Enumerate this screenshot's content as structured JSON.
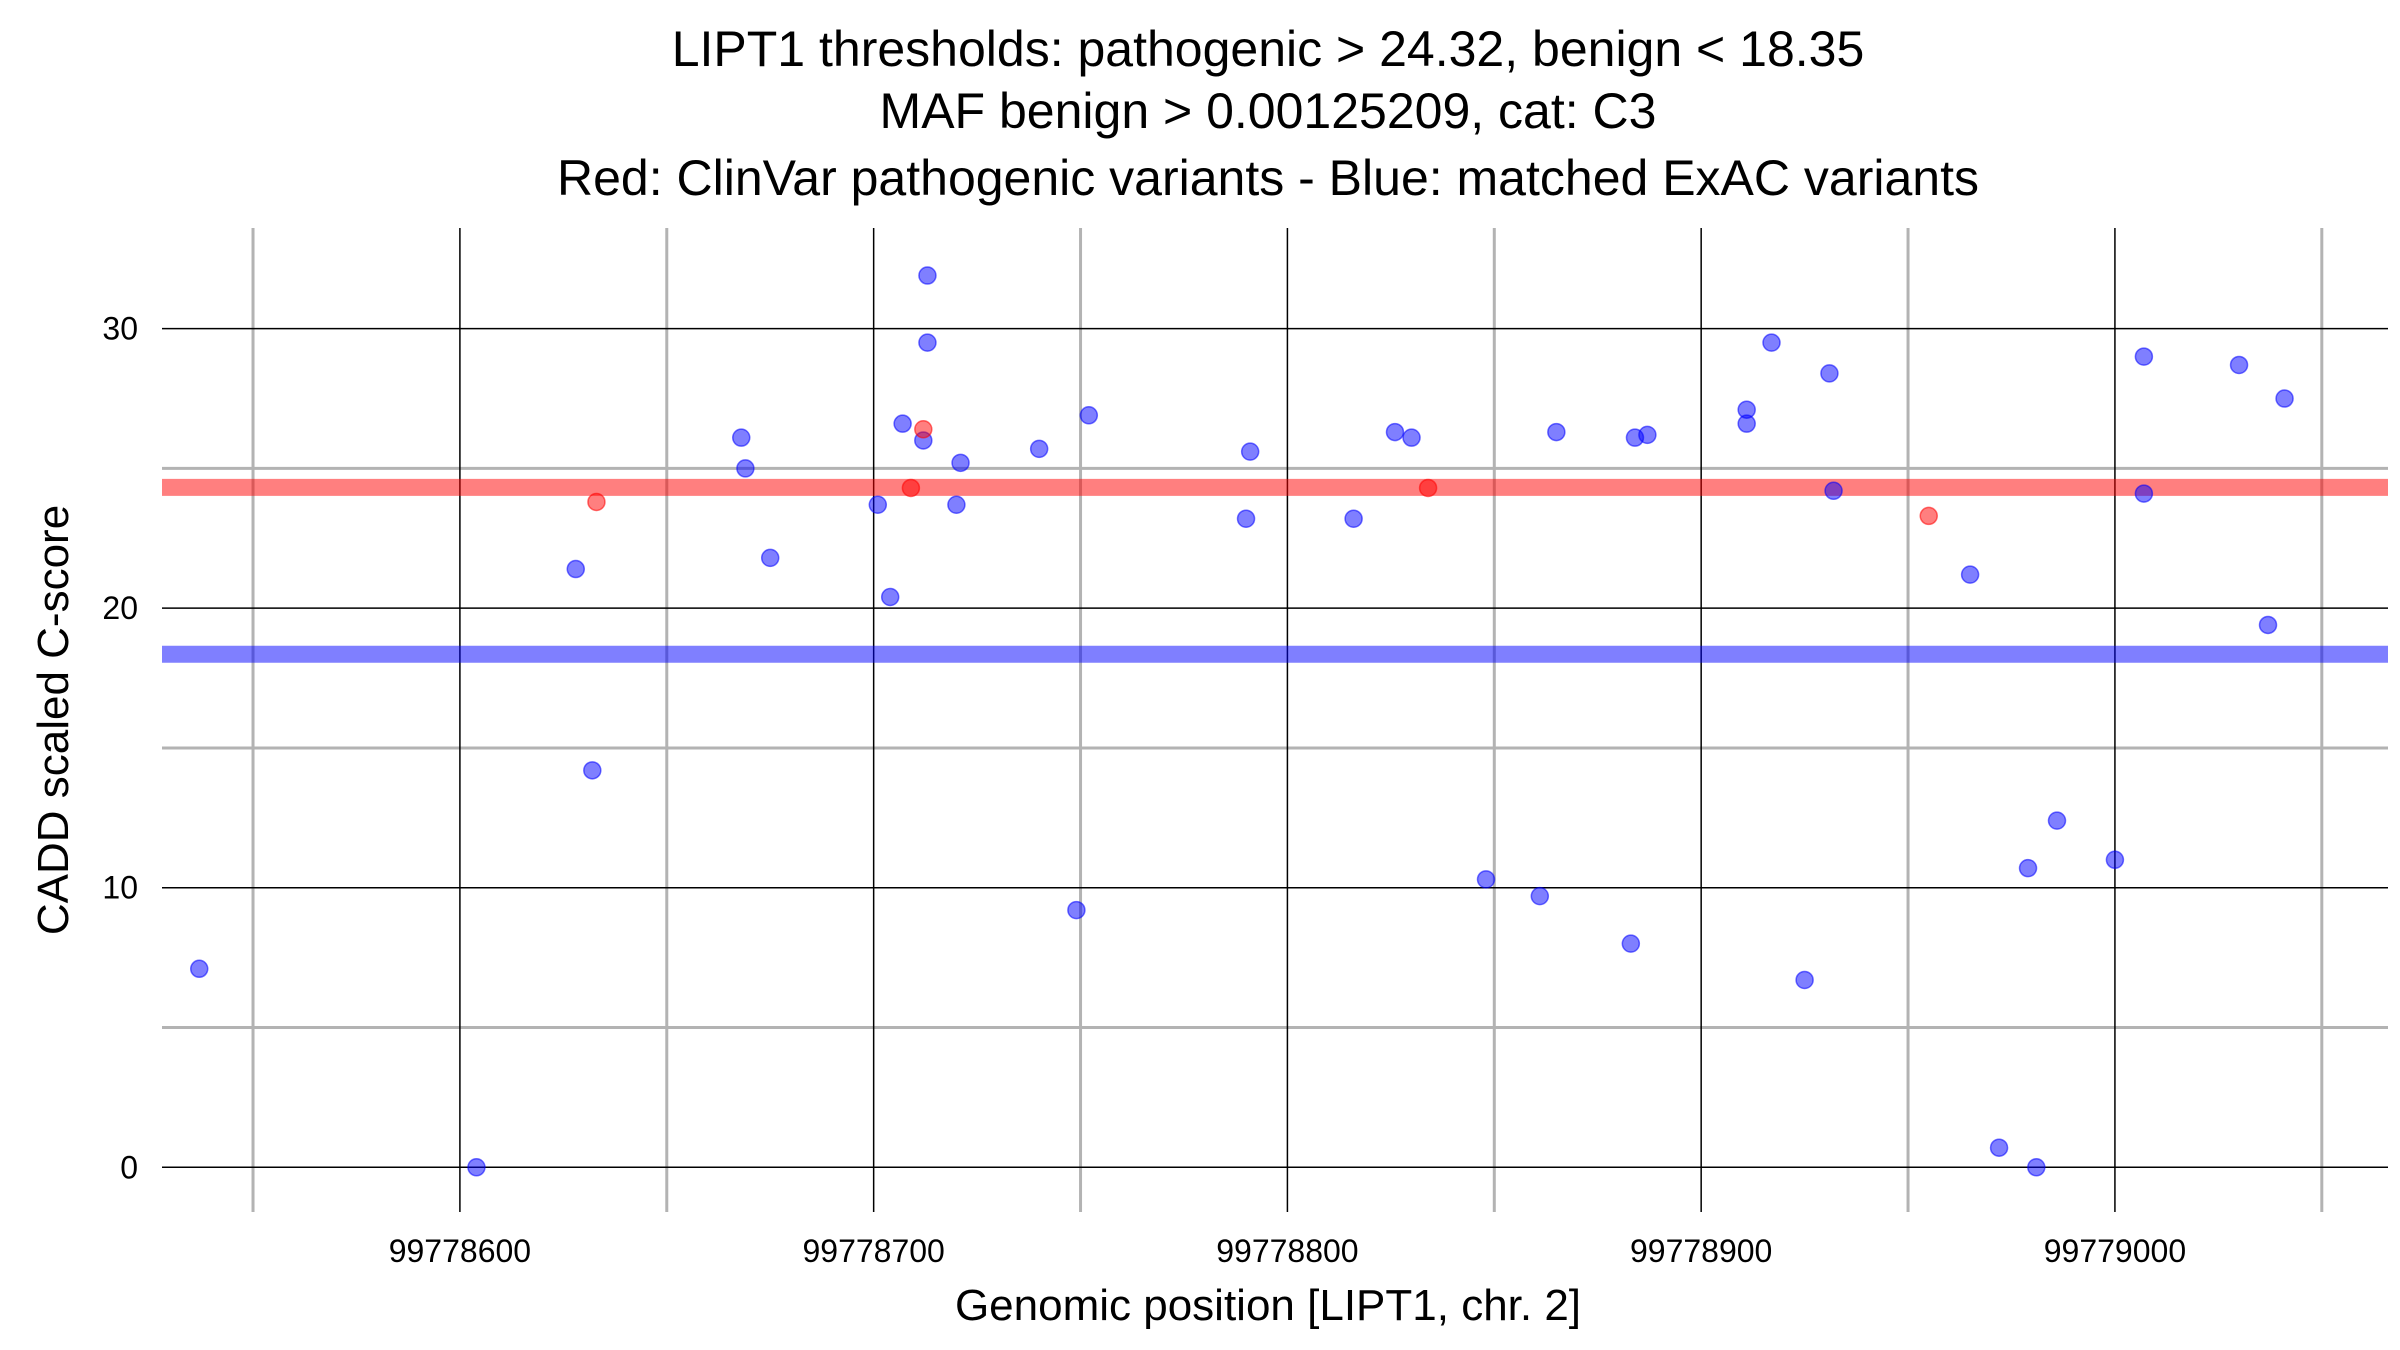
{
  "chart_data": {
    "type": "scatter",
    "title_lines": [
      "LIPT1 thresholds: pathogenic > 24.32, benign < 18.35",
      "MAF benign > 0.00125209, cat: C3",
      "Red: ClinVar pathogenic variants - Blue: matched ExAC variants"
    ],
    "xlabel": "Genomic position [LIPT1, chr. 2]",
    "ylabel": "CADD scaled C-score",
    "xlim": [
      99778528,
      99779066
    ],
    "ylim": [
      -1.6,
      33.6
    ],
    "x_major_ticks": [
      99778600,
      99778700,
      99778800,
      99778900,
      99779000
    ],
    "x_minor_ticks": [
      99778550,
      99778650,
      99778750,
      99778850,
      99778950,
      99779050
    ],
    "y_major_ticks": [
      0,
      10,
      20,
      30
    ],
    "y_minor_ticks": [
      5,
      15,
      25
    ],
    "thresholds": {
      "pathogenic": 24.32,
      "benign": 18.35,
      "pathogenic_color": "#ff0000",
      "benign_color": "#0000ff"
    },
    "grid": true,
    "series": [
      {
        "color": "#0000ff",
        "points": [
          [
            99778537,
            7.1
          ],
          [
            99778604,
            0.0
          ],
          [
            99778628,
            21.4
          ],
          [
            99778632,
            14.2
          ],
          [
            99778668,
            26.1
          ],
          [
            99778669,
            25.0
          ],
          [
            99778675,
            21.8
          ],
          [
            99778701,
            23.7
          ],
          [
            99778704,
            20.4
          ],
          [
            99778707,
            26.6
          ],
          [
            99778712,
            26.0
          ],
          [
            99778713,
            31.9
          ],
          [
            99778713,
            29.5
          ],
          [
            99778720,
            23.7
          ],
          [
            99778721,
            25.2
          ],
          [
            99778740,
            25.7
          ],
          [
            99778749,
            9.2
          ],
          [
            99778752,
            26.9
          ],
          [
            99778790,
            23.2
          ],
          [
            99778791,
            25.6
          ],
          [
            99778816,
            23.2
          ],
          [
            99778826,
            26.3
          ],
          [
            99778830,
            26.1
          ],
          [
            99778848,
            10.3
          ],
          [
            99778861,
            9.7
          ],
          [
            99778865,
            26.3
          ],
          [
            99778883,
            8.0
          ],
          [
            99778884,
            26.1
          ],
          [
            99778887,
            26.2
          ],
          [
            99778911,
            27.1
          ],
          [
            99778911,
            26.6
          ],
          [
            99778917,
            29.5
          ],
          [
            99778925,
            6.7
          ],
          [
            99778931,
            28.4
          ],
          [
            99778932,
            24.2
          ],
          [
            99778965,
            21.2
          ],
          [
            99778972,
            0.7
          ],
          [
            99778979,
            10.7
          ],
          [
            99778981,
            0.0
          ],
          [
            99778986,
            12.4
          ],
          [
            99779000,
            11.0
          ],
          [
            99779007,
            29.0
          ],
          [
            99779007,
            24.1
          ],
          [
            99779030,
            28.7
          ],
          [
            99779037,
            19.4
          ],
          [
            99779041,
            27.5
          ]
        ]
      },
      {
        "color": "#ff0000",
        "points": [
          [
            99778633,
            23.8
          ],
          [
            99778709,
            24.3
          ],
          [
            99778712,
            26.4
          ],
          [
            99778834,
            24.3
          ],
          [
            99778955,
            23.3
          ]
        ]
      }
    ]
  }
}
